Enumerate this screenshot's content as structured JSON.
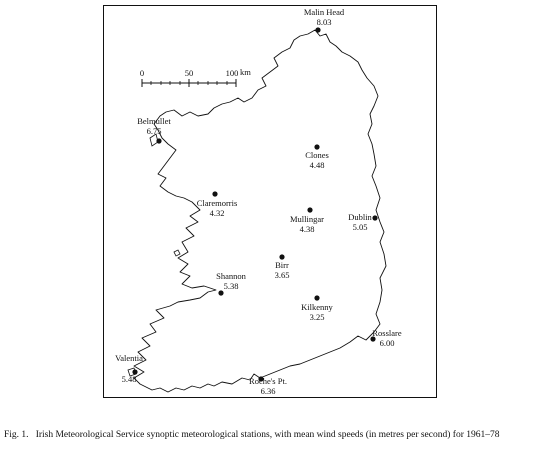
{
  "scale_bar": {
    "ticks": [
      "0",
      "50",
      "100"
    ],
    "unit": "km"
  },
  "stations": [
    {
      "name": "Malin Head",
      "value": "8.03"
    },
    {
      "name": "Belmullet",
      "value": "6.75"
    },
    {
      "name": "Clones",
      "value": "4.48"
    },
    {
      "name": "Claremorris",
      "value": "4.32"
    },
    {
      "name": "Mullingar",
      "value": "4.38"
    },
    {
      "name": "Dublin",
      "value": "5.05"
    },
    {
      "name": "Birr",
      "value": "3.65"
    },
    {
      "name": "Shannon",
      "value": "5.38"
    },
    {
      "name": "Kilkenny",
      "value": "3.25"
    },
    {
      "name": "Rosslare",
      "value": "6.00"
    },
    {
      "name": "Valentia",
      "value": "5.48"
    },
    {
      "name": "Roche's Pt.",
      "value": "6.36"
    }
  ],
  "caption": {
    "label": "Fig. 1.",
    "text": "Irish Meteorological Service synoptic meteorological stations, with mean wind speeds (in metres per second) for 1961–78"
  }
}
